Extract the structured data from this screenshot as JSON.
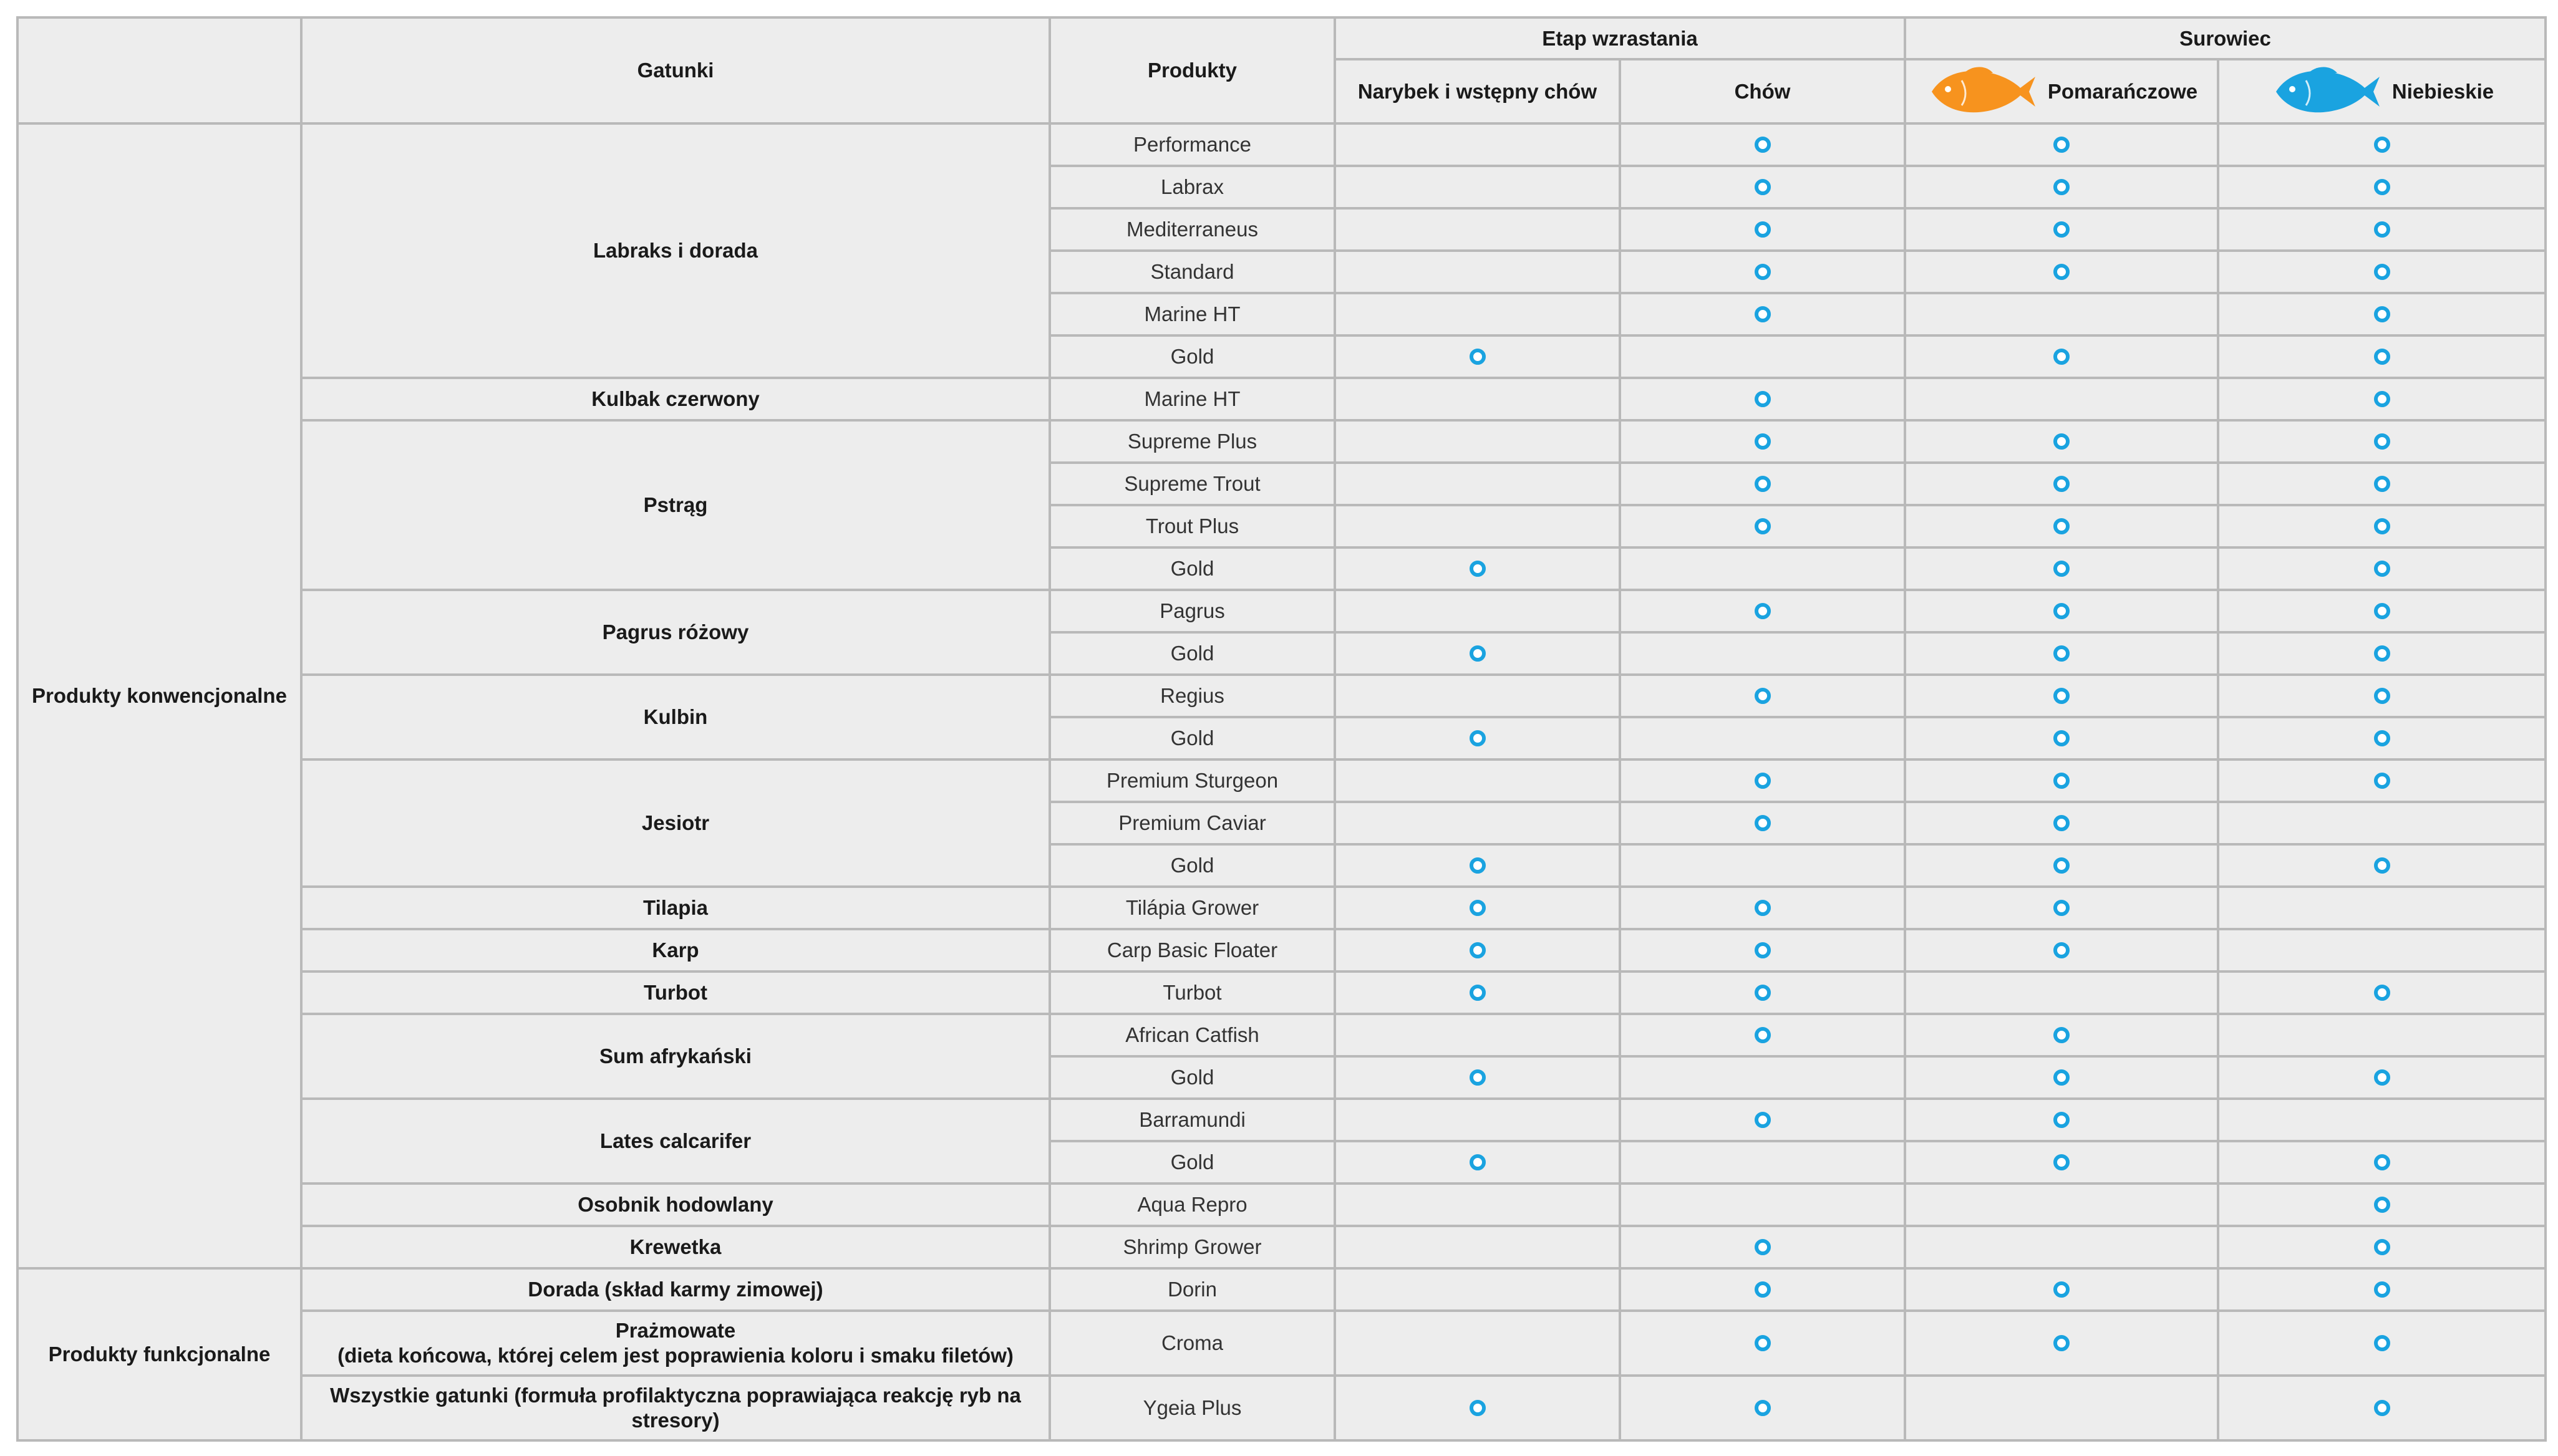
{
  "headers": {
    "species": "Gatunki",
    "products": "Produkty",
    "growth_stage": "Etap wzrastania",
    "stage_fry": "Narybek i wstępny chów",
    "stage_grow": "Chów",
    "raw_material": "Surowiec",
    "raw_orange": "Pomarańczowe",
    "raw_blue": "Niebieskie"
  },
  "colors": {
    "orange_fish": "#f7931e",
    "blue_fish": "#1aa3e0",
    "dot": "#1aa3e0",
    "border": "#b9b9b9",
    "cell_bg": "#ededed"
  },
  "icons": {
    "orange": "orange-fish-icon",
    "blue": "blue-fish-icon",
    "dot": "dot-marker-icon"
  },
  "categories": [
    {
      "label": "Produkty konwencjonalne",
      "groups": [
        {
          "species": "Labraks i dorada",
          "products": [
            {
              "name": "Performance",
              "fry": false,
              "grow": true,
              "orange": true,
              "blue": true
            },
            {
              "name": "Labrax",
              "fry": false,
              "grow": true,
              "orange": true,
              "blue": true
            },
            {
              "name": "Mediterraneus",
              "fry": false,
              "grow": true,
              "orange": true,
              "blue": true
            },
            {
              "name": "Standard",
              "fry": false,
              "grow": true,
              "orange": true,
              "blue": true
            },
            {
              "name": "Marine HT",
              "fry": false,
              "grow": true,
              "orange": false,
              "blue": true
            },
            {
              "name": "Gold",
              "fry": true,
              "grow": false,
              "orange": true,
              "blue": true
            }
          ]
        },
        {
          "species": "Kulbak czerwony",
          "products": [
            {
              "name": "Marine HT",
              "fry": false,
              "grow": true,
              "orange": false,
              "blue": true
            }
          ]
        },
        {
          "species": "Pstrąg",
          "products": [
            {
              "name": "Supreme Plus",
              "fry": false,
              "grow": true,
              "orange": true,
              "blue": true
            },
            {
              "name": "Supreme Trout",
              "fry": false,
              "grow": true,
              "orange": true,
              "blue": true
            },
            {
              "name": "Trout Plus",
              "fry": false,
              "grow": true,
              "orange": true,
              "blue": true
            },
            {
              "name": "Gold",
              "fry": true,
              "grow": false,
              "orange": true,
              "blue": true
            }
          ]
        },
        {
          "species": "Pagrus różowy",
          "products": [
            {
              "name": "Pagrus",
              "fry": false,
              "grow": true,
              "orange": true,
              "blue": true
            },
            {
              "name": "Gold",
              "fry": true,
              "grow": false,
              "orange": true,
              "blue": true
            }
          ]
        },
        {
          "species": "Kulbin",
          "products": [
            {
              "name": "Regius",
              "fry": false,
              "grow": true,
              "orange": true,
              "blue": true
            },
            {
              "name": "Gold",
              "fry": true,
              "grow": false,
              "orange": true,
              "blue": true
            }
          ]
        },
        {
          "species": "Jesiotr",
          "products": [
            {
              "name": "Premium Sturgeon",
              "fry": false,
              "grow": true,
              "orange": true,
              "blue": true
            },
            {
              "name": "Premium Caviar",
              "fry": false,
              "grow": true,
              "orange": true,
              "blue": false
            },
            {
              "name": "Gold",
              "fry": true,
              "grow": false,
              "orange": true,
              "blue": true
            }
          ]
        },
        {
          "species": "Tilapia",
          "products": [
            {
              "name": "Tilápia Grower",
              "fry": true,
              "grow": true,
              "orange": true,
              "blue": false
            }
          ]
        },
        {
          "species": "Karp",
          "products": [
            {
              "name": "Carp Basic Floater",
              "fry": true,
              "grow": true,
              "orange": true,
              "blue": false
            }
          ]
        },
        {
          "species": "Turbot",
          "products": [
            {
              "name": "Turbot",
              "fry": true,
              "grow": true,
              "orange": false,
              "blue": true
            }
          ]
        },
        {
          "species": "Sum afrykański",
          "products": [
            {
              "name": "African Catfish",
              "fry": false,
              "grow": true,
              "orange": true,
              "blue": false
            },
            {
              "name": "Gold",
              "fry": true,
              "grow": false,
              "orange": true,
              "blue": true
            }
          ]
        },
        {
          "species": "Lates calcarifer",
          "products": [
            {
              "name": "Barramundi",
              "fry": false,
              "grow": true,
              "orange": true,
              "blue": false
            },
            {
              "name": "Gold",
              "fry": true,
              "grow": false,
              "orange": true,
              "blue": true
            }
          ]
        },
        {
          "species": "Osobnik hodowlany",
          "products": [
            {
              "name": "Aqua Repro",
              "fry": false,
              "grow": false,
              "orange": false,
              "blue": true
            }
          ]
        },
        {
          "species": "Krewetka",
          "products": [
            {
              "name": "Shrimp Grower",
              "fry": false,
              "grow": true,
              "orange": false,
              "blue": true
            }
          ]
        }
      ]
    },
    {
      "label": "Produkty funkcjonalne",
      "groups": [
        {
          "species": "Dorada (skład karmy zimowej)",
          "products": [
            {
              "name": "Dorin",
              "fry": false,
              "grow": true,
              "orange": true,
              "blue": true
            }
          ]
        },
        {
          "species": "Prażmowate",
          "species_note": "(dieta końcowa, której celem jest poprawienia koloru i smaku filetów)",
          "products": [
            {
              "name": "Croma",
              "fry": false,
              "grow": true,
              "orange": true,
              "blue": true
            }
          ]
        },
        {
          "species": "Wszystkie gatunki (formuła profilaktyczna poprawiająca reakcję ryb na stresory)",
          "products": [
            {
              "name": "Ygeia Plus",
              "fry": true,
              "grow": true,
              "orange": false,
              "blue": true
            }
          ]
        }
      ]
    }
  ]
}
